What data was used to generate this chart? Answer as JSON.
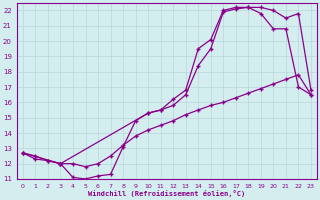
{
  "bg_color": "#d4eef0",
  "line_color": "#8b008b",
  "grid_color": "#b8d8d8",
  "xlabel": "Windchill (Refroidissement éolien,°C)",
  "xlim": [
    -0.5,
    23.5
  ],
  "ylim": [
    11,
    22.5
  ],
  "xticks": [
    0,
    1,
    2,
    3,
    4,
    5,
    6,
    7,
    8,
    9,
    10,
    11,
    12,
    13,
    14,
    15,
    16,
    17,
    18,
    19,
    20,
    21,
    22,
    23
  ],
  "yticks": [
    11,
    12,
    13,
    14,
    15,
    16,
    17,
    18,
    19,
    20,
    21,
    22
  ],
  "series": [
    {
      "x": [
        0,
        1,
        2,
        3,
        4,
        5,
        6,
        7,
        8,
        9,
        10,
        11,
        12,
        13,
        14,
        15,
        16,
        17,
        18,
        19,
        20,
        21,
        22,
        23
      ],
      "y": [
        12.7,
        12.5,
        12.2,
        12.0,
        12.0,
        11.8,
        12.0,
        12.5,
        13.2,
        13.8,
        14.2,
        14.5,
        14.8,
        15.2,
        15.5,
        15.8,
        16.0,
        16.3,
        16.6,
        16.9,
        17.2,
        17.5,
        17.8,
        16.5
      ]
    },
    {
      "x": [
        0,
        1,
        2,
        3,
        4,
        5,
        6,
        7,
        8,
        9,
        10,
        11,
        12,
        13,
        14,
        15,
        16,
        17,
        18,
        19,
        20,
        21,
        22,
        23
      ],
      "y": [
        12.7,
        12.3,
        12.2,
        12.0,
        11.1,
        11.0,
        11.2,
        11.3,
        13.1,
        14.8,
        15.3,
        15.5,
        15.8,
        16.5,
        18.4,
        19.5,
        21.9,
        22.1,
        22.2,
        22.2,
        22.0,
        21.5,
        21.8,
        16.8
      ]
    },
    {
      "x": [
        0,
        3,
        10,
        11,
        12,
        13,
        14,
        15,
        16,
        17,
        18,
        19,
        20,
        21,
        22,
        23
      ],
      "y": [
        12.7,
        12.0,
        15.3,
        15.5,
        16.2,
        16.8,
        19.5,
        20.1,
        22.0,
        22.2,
        22.2,
        21.8,
        20.8,
        20.8,
        17.0,
        16.5
      ]
    }
  ]
}
